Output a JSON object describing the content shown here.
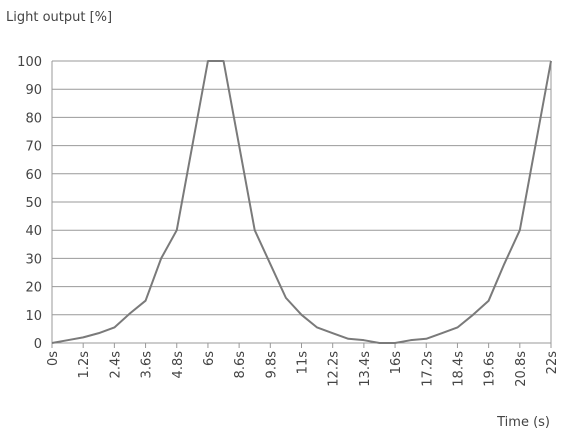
{
  "chart_data": {
    "type": "line",
    "title": "Light output [%]",
    "x_label": "Time (s)",
    "categories": [
      "0s",
      null,
      "1.2s",
      null,
      "2.4s",
      null,
      "3.6s",
      null,
      "4.8s",
      null,
      "6s",
      null,
      "8.6s",
      null,
      "9.8s",
      null,
      "11s",
      null,
      "12.2s",
      null,
      "13.4s",
      null,
      "16s",
      null,
      "17.2s",
      null,
      "18.4s",
      null,
      "19.6s",
      null,
      "20.8s",
      null,
      "22s"
    ],
    "values": [
      0,
      1,
      2,
      3.5,
      5.5,
      10.5,
      15,
      30,
      40,
      70,
      100,
      100,
      70,
      40,
      28,
      16,
      10,
      5.5,
      3.5,
      1.5,
      1,
      0,
      0,
      1,
      1.5,
      3.5,
      5.5,
      10,
      15,
      28,
      40,
      70,
      100
    ],
    "color": "#7a7a7a",
    "ylim": [
      0,
      100
    ],
    "yticks": [
      0,
      10,
      20,
      30,
      40,
      50,
      60,
      70,
      80,
      90,
      100
    ],
    "grid": true
  }
}
